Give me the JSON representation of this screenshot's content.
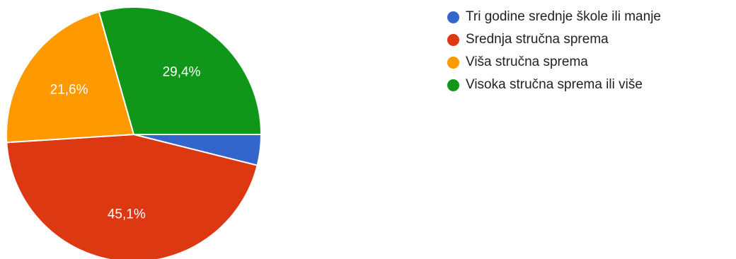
{
  "chart_data": {
    "type": "pie",
    "slices": [
      {
        "label": "Tri godine srednje škole ili manje",
        "value": 3.9,
        "value_label": "",
        "color": "#3366cc"
      },
      {
        "label": "Srednja stručna sprema",
        "value": 45.1,
        "value_label": "45,1%",
        "color": "#dc3912"
      },
      {
        "label": "Viša stručna sprema",
        "value": 21.6,
        "value_label": "21,6%",
        "color": "#ff9900"
      },
      {
        "label": "Visoka stručna sprema ili više",
        "value": 29.4,
        "value_label": "29,4%",
        "color": "#109618"
      }
    ],
    "start_angle_deg": 90,
    "direction": "clockwise",
    "legend_position": "right"
  }
}
